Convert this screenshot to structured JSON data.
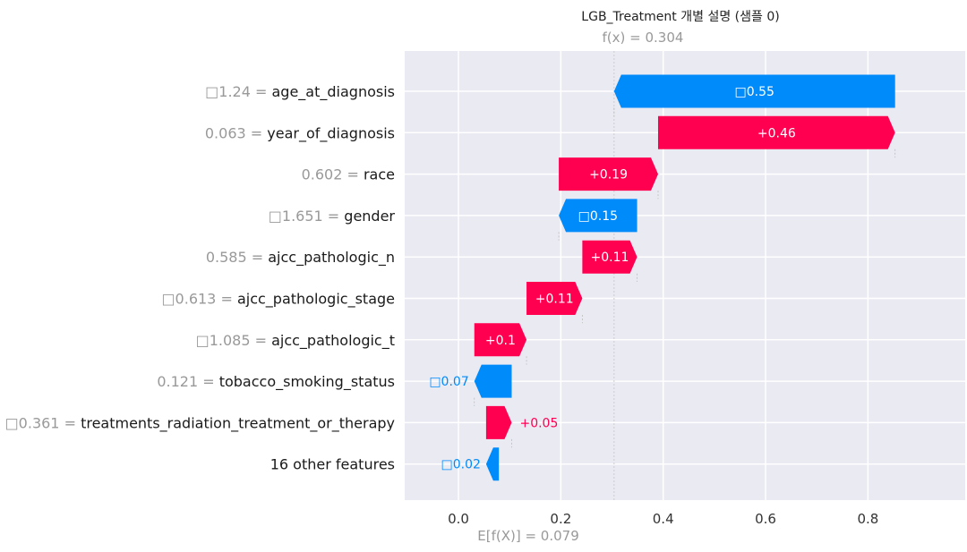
{
  "chart_data": {
    "type": "waterfall",
    "title": "LGB_Treatment 개별 설명 (샘플 0)",
    "fx_label": "f(x) = 0.304",
    "base_label": "E[f(X)] = 0.079",
    "fx": 0.304,
    "base_value": 0.079,
    "xlim": [
      -0.105,
      0.99
    ],
    "x_ticks": [
      0.0,
      0.2,
      0.4,
      0.6,
      0.8
    ],
    "x_tick_labels": [
      "0.0",
      "0.2",
      "0.4",
      "0.6",
      "0.8"
    ],
    "grid": true,
    "colors": {
      "positive": "#ff0051",
      "negative": "#008bfb",
      "plot_bg": "#eaeaf2"
    },
    "features": [
      {
        "value_text": "□1.24",
        "name": "age_at_diagnosis",
        "label": "□0.55",
        "start": 0.853,
        "end": 0.304
      },
      {
        "value_text": "0.063",
        "name": "year_of_diagnosis",
        "label": "+0.46",
        "start": 0.39,
        "end": 0.853
      },
      {
        "value_text": "0.602",
        "name": "race",
        "label": "+0.19",
        "start": 0.196,
        "end": 0.39
      },
      {
        "value_text": "□1.651",
        "name": "gender",
        "label": "□0.15",
        "start": 0.349,
        "end": 0.196
      },
      {
        "value_text": "0.585",
        "name": "ajcc_pathologic_n",
        "label": "+0.11",
        "start": 0.242,
        "end": 0.349
      },
      {
        "value_text": "□0.613",
        "name": "ajcc_pathologic_stage",
        "label": "+0.11",
        "start": 0.133,
        "end": 0.242
      },
      {
        "value_text": "□1.085",
        "name": "ajcc_pathologic_t",
        "label": "+0.1",
        "start": 0.031,
        "end": 0.133
      },
      {
        "value_text": "0.121",
        "name": "tobacco_smoking_status",
        "label": "□0.07",
        "start": 0.104,
        "end": 0.031
      },
      {
        "value_text": "□0.361",
        "name": "treatments_radiation_treatment_or_therapy",
        "label": "+0.05",
        "start": 0.054,
        "end": 0.104
      },
      {
        "value_text": "",
        "name": "16 other features",
        "label": "□0.02",
        "start": 0.079,
        "end": 0.054
      }
    ]
  }
}
